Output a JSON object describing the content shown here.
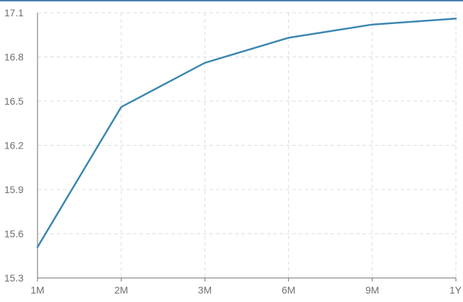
{
  "chart_data": {
    "type": "line",
    "title": "",
    "xlabel": "",
    "ylabel": "",
    "categories": [
      "1M",
      "2M",
      "3M",
      "6M",
      "9M",
      "1Y"
    ],
    "series": [
      {
        "values": [
          15.51,
          16.46,
          16.76,
          16.93,
          17.02,
          17.06
        ],
        "color": "#3a86b0"
      }
    ],
    "ylim": [
      15.3,
      17.1
    ],
    "yticks": [
      "15.3",
      "15.6",
      "15.9",
      "16.2",
      "16.5",
      "16.8",
      "17.1"
    ],
    "grid": true,
    "gridColor": "#d9dde8",
    "axisColor": "#6e6e6e"
  }
}
